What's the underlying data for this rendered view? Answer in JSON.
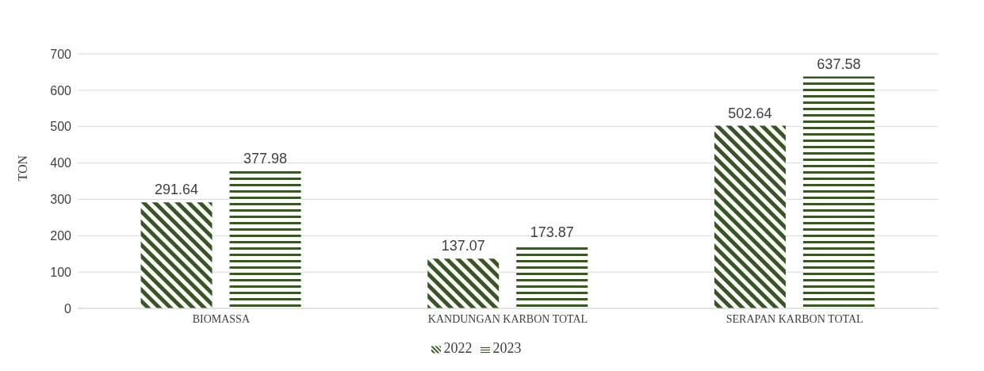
{
  "chart_data": {
    "type": "bar",
    "ylabel": "TON",
    "categories": [
      "BIOMASSA",
      "KANDUNGAN KARBON TOTAL",
      "SERAPAN KARBON TOTAL"
    ],
    "series": [
      {
        "name": "2022",
        "color": "#375623",
        "values": [
          291.64,
          137.07,
          502.64
        ]
      },
      {
        "name": "2023",
        "color": "#375623",
        "values": [
          377.98,
          173.87,
          637.58
        ]
      }
    ],
    "ylim": [
      0,
      700
    ],
    "yticks": [
      0,
      100,
      200,
      300,
      400,
      500,
      600,
      700
    ],
    "grid": "y",
    "legend": "bottom",
    "data_labels": true
  }
}
